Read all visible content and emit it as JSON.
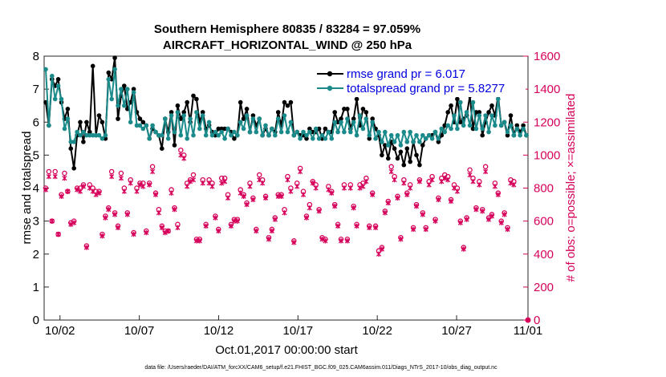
{
  "chart_data": {
    "type": "line",
    "title": "Southern Hemisphere 80835 / 83284 = 97.059%",
    "subtitle": "AIRCRAFT_HORIZONTAL_WIND @ 250 hPa",
    "xlabel": "Oct.01,2017 00:00:00 start",
    "ylabel_left": "rmse and totalspread",
    "ylabel_right": "# of obs: o=possible; ×=assimilated",
    "xlim": [
      0.5,
      31.0
    ],
    "ylim_left": [
      0,
      8
    ],
    "ylim_right": [
      0,
      1600
    ],
    "x_ticks": [
      {
        "x": 1.5,
        "label": "10/02"
      },
      {
        "x": 6.5,
        "label": "10/07"
      },
      {
        "x": 11.5,
        "label": "10/12"
      },
      {
        "x": 16.5,
        "label": "10/17"
      },
      {
        "x": 21.5,
        "label": "10/22"
      },
      {
        "x": 26.5,
        "label": "10/27"
      },
      {
        "x": 31.0,
        "label": "11/01"
      }
    ],
    "y_ticks_left": [
      "0",
      "1",
      "2",
      "3",
      "4",
      "5",
      "6",
      "7",
      "8"
    ],
    "y_ticks_right": [
      "0",
      "200",
      "400",
      "600",
      "800",
      "1000",
      "1200",
      "1400",
      "1600"
    ],
    "legend": [
      {
        "label": "rmse grand pr = 6.017",
        "color": "#000000"
      },
      {
        "label": "totalspread grand pr = 5.8277",
        "color": "#1a8a8a"
      }
    ],
    "footnote": "data file: /Users/raeder/DAI/ATM_forcXX/CAM6_setup/f.e21.FHIST_BGC.f09_025.CAM6assim.011/Diags_NTrS_2017-10/obs_diag_output.nc",
    "series": [
      {
        "name": "rmse",
        "color": "#000000",
        "values": [
          6.6,
          5.9,
          7.3,
          7.1,
          7.3,
          6.6,
          6.1,
          6.4,
          5.2,
          4.6,
          5.6,
          6.0,
          5.4,
          6.0,
          5.7,
          7.7,
          5.6,
          6.2,
          6.0,
          5.5,
          7.5,
          7.3,
          7.95,
          6.1,
          6.8,
          7.1,
          6.4,
          6.6,
          7.0,
          6.3,
          6.1,
          6.0,
          5.9,
          5.5,
          5.8,
          5.7,
          5.6,
          5.2,
          6.1,
          5.7,
          6.3,
          5.3,
          6.5,
          6.1,
          6.3,
          6.6,
          6.0,
          6.8,
          6.7,
          6.0,
          6.3,
          5.8,
          5.9,
          5.7,
          5.6,
          5.8,
          5.8,
          5.8,
          5.8,
          5.7,
          5.5,
          5.6,
          6.6,
          6.1,
          6.4,
          5.7,
          6.2,
          5.9,
          6.1,
          5.6,
          5.8,
          5.6,
          5.8,
          5.7,
          6.3,
          5.9,
          6.6,
          6.5,
          6.6,
          5.6,
          5.7,
          5.6,
          5.6,
          5.5,
          5.8,
          5.7,
          5.7,
          5.8,
          5.5,
          5.8,
          5.7,
          5.7,
          6.3,
          6.0,
          6.1,
          6.4,
          6.4,
          5.8,
          6.1,
          6.7,
          5.9,
          6.4,
          6.3,
          5.5,
          6.1,
          5.8,
          5.6,
          5.0,
          5.3,
          4.9,
          5.4,
          5.2,
          4.9,
          5.1,
          4.7,
          5.2,
          4.8,
          5.4,
          5.0,
          4.7,
          5.3,
          5.5,
          5.6,
          5.6,
          5.7,
          5.4,
          5.6,
          5.9,
          6.3,
          6.5,
          6.0,
          6.7,
          6.0,
          6.1,
          6.2,
          6.8,
          5.8,
          6.3,
          6.3,
          5.6,
          6.0,
          6.3,
          6.5,
          6.2,
          6.8,
          5.9,
          6.0,
          5.6,
          6.2,
          5.6,
          5.9,
          5.7,
          5.9,
          5.6
        ]
      },
      {
        "name": "totalspread",
        "color": "#1a8a8a",
        "values": [
          7.6,
          5.9,
          7.4,
          6.7,
          7.1,
          6.7,
          5.8,
          6.1,
          5.4,
          5.4,
          5.7,
          5.6,
          5.7,
          5.6,
          5.6,
          5.6,
          5.6,
          5.6,
          5.5,
          5.6,
          7.3,
          6.7,
          7.6,
          6.5,
          7.0,
          6.5,
          7.0,
          6.0,
          6.9,
          5.9,
          5.9,
          5.8,
          5.9,
          5.5,
          5.9,
          5.7,
          5.6,
          5.6,
          6.1,
          5.5,
          6.2,
          5.7,
          6.3,
          5.6,
          6.2,
          5.5,
          6.1,
          5.6,
          6.3,
          5.8,
          6.2,
          5.6,
          6.0,
          5.6,
          5.7,
          5.6,
          5.7,
          5.5,
          5.8,
          5.6,
          5.7,
          5.6,
          6.0,
          5.8,
          6.2,
          5.7,
          6.1,
          5.7,
          6.1,
          5.6,
          5.9,
          5.6,
          5.8,
          5.6,
          6.1,
          5.7,
          6.2,
          5.7,
          6.0,
          5.6,
          5.7,
          5.5,
          5.7,
          5.6,
          5.7,
          5.5,
          5.8,
          5.5,
          5.6,
          5.5,
          5.7,
          5.5,
          6.0,
          5.7,
          6.0,
          5.7,
          6.1,
          5.7,
          6.0,
          5.6,
          6.2,
          5.8,
          6.1,
          5.6,
          6.0,
          5.5,
          5.7,
          5.4,
          5.7,
          5.3,
          5.6,
          5.4,
          5.6,
          5.3,
          5.7,
          5.4,
          5.7,
          5.4,
          5.6,
          5.4,
          5.6,
          5.5,
          5.6,
          5.5,
          5.7,
          5.5,
          5.8,
          5.7,
          5.9,
          5.8,
          6.2,
          5.8,
          6.6,
          5.9,
          6.3,
          5.9,
          6.6,
          5.8,
          6.2,
          5.8,
          6.2,
          5.7,
          6.2,
          5.9,
          6.7,
          5.9,
          6.0,
          5.7,
          5.9,
          5.6,
          5.8,
          5.6,
          5.8,
          5.6
        ]
      },
      {
        "name": "possible",
        "marker": "o",
        "color": "#d6005a",
        "values": [
          800,
          900,
          600,
          900,
          520,
          760,
          890,
          780,
          590,
          600,
          800,
          800,
          820,
          450,
          820,
          800,
          780,
          780,
          520,
          630,
          680,
          900,
          650,
          570,
          890,
          800,
          650,
          850,
          530,
          800,
          830,
          830,
          540,
          830,
          930,
          770,
          670,
          570,
          540,
          540,
          790,
          680,
          580,
          1030,
          1000,
          830,
          850,
          880,
          490,
          490,
          850,
          580,
          850,
          830,
          630,
          550,
          860,
          860,
          760,
          580,
          610,
          610,
          790,
          760,
          710,
          830,
          740,
          550,
          880,
          850,
          750,
          500,
          550,
          620,
          760,
          760,
          670,
          870,
          800,
          480,
          830,
          920,
          780,
          630,
          700,
          840,
          820,
          670,
          500,
          490,
          810,
          780,
          700,
          580,
          490,
          820,
          490,
          820,
          690,
          580,
          820,
          830,
          860,
          570,
          770,
          570,
          420,
          440,
          660,
          720,
          930,
          870,
          750,
          500,
          850,
          770,
          820,
          560,
          700,
          850,
          650,
          560,
          840,
          870,
          610,
          740,
          860,
          880,
          870,
          730,
          820,
          800,
          600,
          440,
          620,
          910,
          860,
          680,
          840,
          670,
          930,
          620,
          640,
          830,
          770,
          600,
          650,
          560,
          850,
          840
        ]
      },
      {
        "name": "assimilated",
        "marker": "x",
        "color": "#d6005a",
        "values": [
          790,
          870,
          600,
          870,
          520,
          750,
          860,
          780,
          580,
          590,
          790,
          780,
          810,
          440,
          800,
          780,
          760,
          770,
          510,
          620,
          670,
          870,
          640,
          560,
          860,
          780,
          640,
          830,
          520,
          780,
          820,
          810,
          530,
          820,
          900,
          760,
          650,
          560,
          530,
          540,
          770,
          670,
          560,
          1000,
          980,
          810,
          840,
          850,
          480,
          480,
          830,
          570,
          830,
          810,
          620,
          540,
          830,
          840,
          740,
          570,
          600,
          600,
          770,
          750,
          700,
          810,
          730,
          540,
          850,
          830,
          740,
          490,
          540,
          610,
          750,
          750,
          650,
          850,
          780,
          470,
          810,
          900,
          760,
          620,
          680,
          830,
          800,
          660,
          490,
          480,
          790,
          770,
          690,
          570,
          480,
          800,
          480,
          800,
          680,
          570,
          800,
          810,
          840,
          560,
          760,
          560,
          400,
          430,
          650,
          710,
          900,
          850,
          740,
          490,
          830,
          760,
          800,
          550,
          690,
          840,
          640,
          550,
          820,
          850,
          600,
          730,
          840,
          860,
          850,
          720,
          800,
          780,
          590,
          430,
          610,
          880,
          840,
          670,
          820,
          660,
          900,
          610,
          630,
          810,
          760,
          590,
          640,
          550,
          830,
          820
        ]
      }
    ]
  }
}
